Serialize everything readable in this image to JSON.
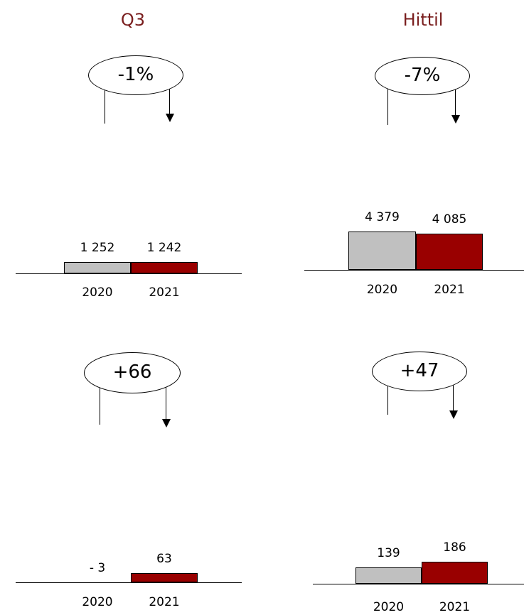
{
  "headers": {
    "left": "Q3",
    "right": "Hittil"
  },
  "chart_data": [
    {
      "type": "bar",
      "categories": [
        "2020",
        "2021"
      ],
      "values": [
        1252,
        1242
      ],
      "value_labels": [
        "1 252",
        "1 242"
      ],
      "change": "-1%",
      "colors": [
        "#c0c0c0",
        "#990000"
      ]
    },
    {
      "type": "bar",
      "categories": [
        "2020",
        "2021"
      ],
      "values": [
        4379,
        4085
      ],
      "value_labels": [
        "4 379",
        "4 085"
      ],
      "change": "-7%",
      "colors": [
        "#c0c0c0",
        "#990000"
      ]
    },
    {
      "type": "bar",
      "categories": [
        "2020",
        "2021"
      ],
      "values": [
        -3,
        63
      ],
      "value_labels": [
        "-  3",
        "63"
      ],
      "change": "+66",
      "colors": [
        "#c0c0c0",
        "#990000"
      ]
    },
    {
      "type": "bar",
      "categories": [
        "2020",
        "2021"
      ],
      "values": [
        139,
        186
      ],
      "value_labels": [
        "139",
        "186"
      ],
      "change": "+47",
      "colors": [
        "#c0c0c0",
        "#990000"
      ]
    }
  ]
}
